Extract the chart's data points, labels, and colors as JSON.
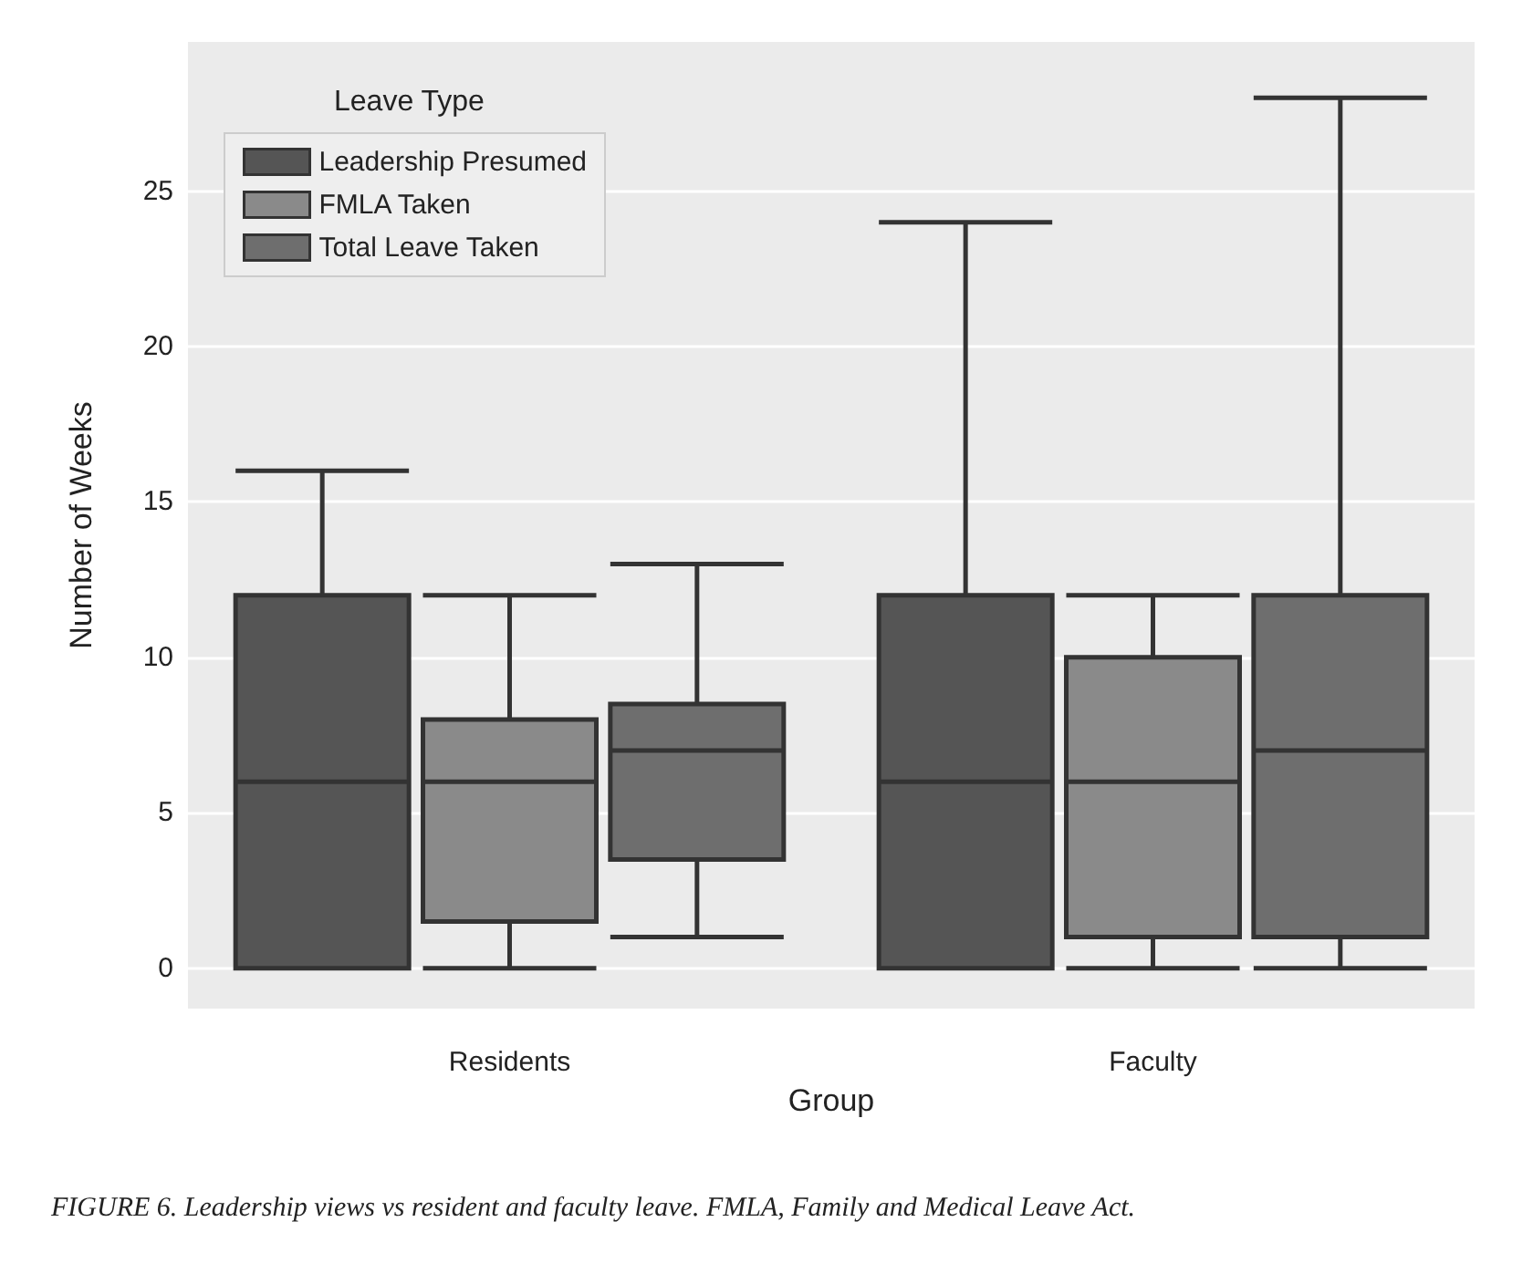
{
  "chart_data": {
    "type": "box",
    "xlabel": "Group",
    "ylabel": "Number of Weeks",
    "legend_title": "Leave Type",
    "categories": [
      "Residents",
      "Faculty"
    ],
    "series": [
      {
        "name": "Leadership Presumed",
        "color": "#555555",
        "boxes": [
          {
            "low": 0,
            "q1": 0,
            "median": 6,
            "q3": 12,
            "high": 16
          },
          {
            "low": 0,
            "q1": 0,
            "median": 6,
            "q3": 12,
            "high": 24
          }
        ]
      },
      {
        "name": "FMLA Taken",
        "color": "#8a8a8a",
        "boxes": [
          {
            "low": 0,
            "q1": 1.5,
            "median": 6,
            "q3": 8,
            "high": 12
          },
          {
            "low": 0,
            "q1": 1,
            "median": 6,
            "q3": 10,
            "high": 12
          }
        ]
      },
      {
        "name": "Total Leave Taken",
        "color": "#6e6e6e",
        "boxes": [
          {
            "low": 1,
            "q1": 3.5,
            "median": 7,
            "q3": 8.5,
            "high": 13
          },
          {
            "low": 0,
            "q1": 1,
            "median": 7,
            "q3": 12,
            "high": 28
          }
        ]
      }
    ],
    "ylim": [
      -1.3,
      29.8
    ],
    "yticks": [
      0,
      5,
      10,
      15,
      20,
      25
    ],
    "grid": "y",
    "legend": "top left",
    "annotations": [
      "FIGURE 6. Leadership views vs resident and faculty leave. FMLA, Family and Medical Leave Act."
    ]
  }
}
